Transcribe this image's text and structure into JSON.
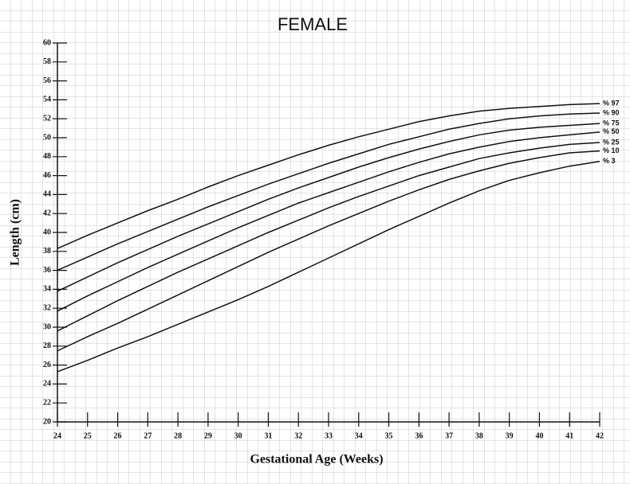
{
  "chart_data": {
    "type": "line",
    "title": "FEMALE",
    "x_label": "Gestational Age (Weeks)",
    "y_label": "Length (cm)",
    "x": [
      24,
      25,
      26,
      27,
      28,
      29,
      30,
      31,
      32,
      33,
      34,
      35,
      36,
      37,
      38,
      39,
      40,
      41,
      42
    ],
    "xlim": [
      24,
      42
    ],
    "xticks": [
      24,
      25,
      26,
      27,
      28,
      29,
      30,
      31,
      32,
      33,
      34,
      35,
      36,
      37,
      38,
      39,
      40,
      41,
      42
    ],
    "ylim": [
      20,
      60
    ],
    "yticks": [
      20,
      22,
      24,
      26,
      28,
      30,
      32,
      34,
      36,
      38,
      40,
      42,
      44,
      46,
      48,
      50,
      52,
      54,
      56,
      58,
      60
    ],
    "series": [
      {
        "name": "% 97",
        "color": "#111111",
        "values": [
          38.3,
          39.7,
          41.0,
          42.3,
          43.5,
          44.8,
          46.0,
          47.1,
          48.2,
          49.2,
          50.1,
          50.9,
          51.7,
          52.3,
          52.8,
          53.1,
          53.3,
          53.5,
          53.6
        ]
      },
      {
        "name": "% 90",
        "color": "#111111",
        "values": [
          36.0,
          37.4,
          38.8,
          40.1,
          41.4,
          42.7,
          43.9,
          45.1,
          46.2,
          47.3,
          48.3,
          49.3,
          50.1,
          50.9,
          51.5,
          52.0,
          52.3,
          52.5,
          52.6
        ]
      },
      {
        "name": "% 75",
        "color": "#111111",
        "values": [
          33.8,
          35.3,
          36.8,
          38.2,
          39.6,
          40.9,
          42.2,
          43.5,
          44.7,
          45.8,
          46.9,
          47.9,
          48.8,
          49.6,
          50.3,
          50.8,
          51.1,
          51.3,
          51.5
        ]
      },
      {
        "name": "% 50",
        "color": "#111111",
        "values": [
          31.7,
          33.3,
          34.8,
          36.3,
          37.7,
          39.1,
          40.5,
          41.8,
          43.1,
          44.2,
          45.3,
          46.4,
          47.4,
          48.3,
          49.0,
          49.6,
          50.0,
          50.3,
          50.6
        ]
      },
      {
        "name": "% 25",
        "color": "#111111",
        "values": [
          29.6,
          31.2,
          32.8,
          34.3,
          35.8,
          37.2,
          38.6,
          40.0,
          41.3,
          42.6,
          43.8,
          44.9,
          46.0,
          46.9,
          47.8,
          48.4,
          48.9,
          49.3,
          49.5
        ]
      },
      {
        "name": "% 10",
        "color": "#111111",
        "values": [
          27.5,
          29.0,
          30.4,
          31.9,
          33.4,
          34.9,
          36.4,
          37.9,
          39.3,
          40.7,
          42.0,
          43.3,
          44.5,
          45.6,
          46.5,
          47.3,
          47.9,
          48.4,
          48.6
        ]
      },
      {
        "name": "% 3",
        "color": "#111111",
        "values": [
          25.3,
          26.5,
          27.8,
          29.0,
          30.3,
          31.6,
          32.9,
          34.3,
          35.8,
          37.3,
          38.8,
          40.3,
          41.7,
          43.1,
          44.4,
          45.5,
          46.3,
          47.0,
          47.5
        ]
      }
    ]
  }
}
